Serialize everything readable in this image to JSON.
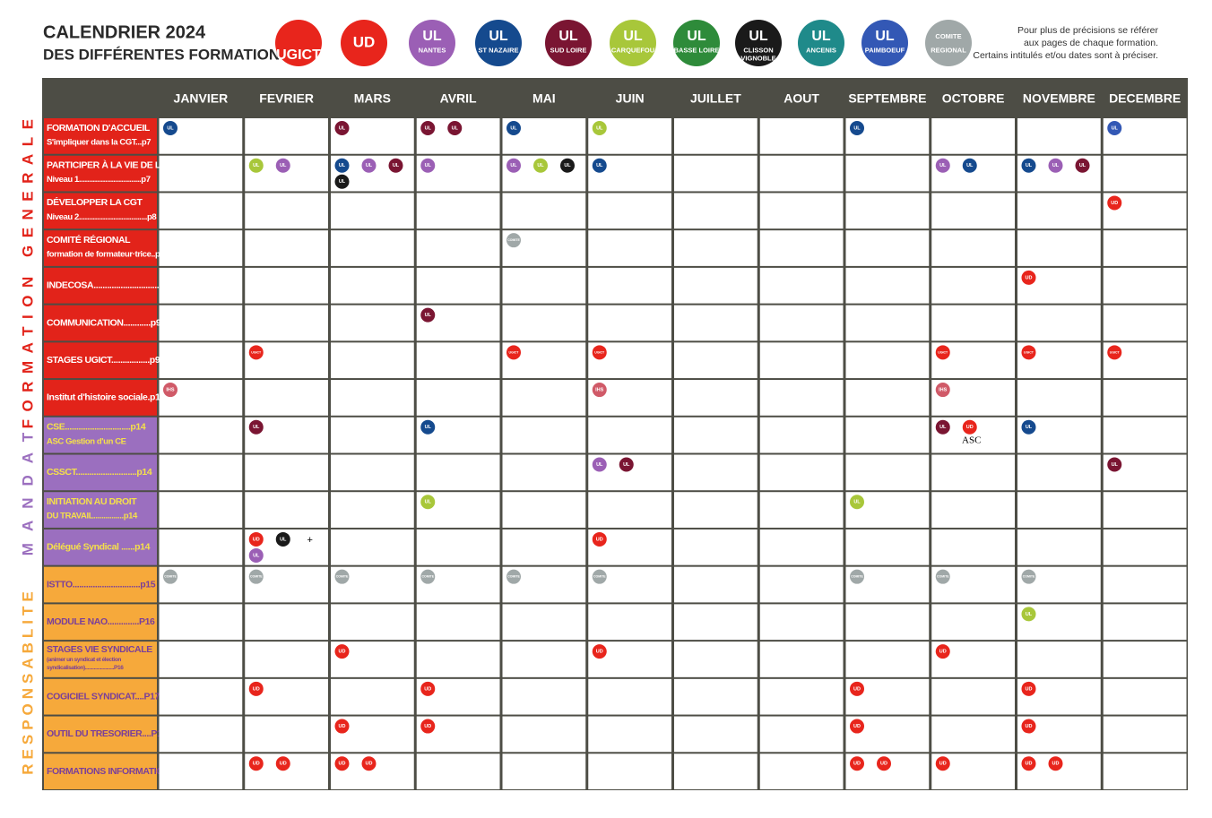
{
  "header": {
    "title": [
      "CALENDRIER 2024",
      "DES DIFFÉRENTES FORMATIONS"
    ],
    "note": [
      "Pour plus de précisions se référer",
      "aux pages de chaque formation.",
      "Certains intitulés et/ou dates sont à préciser."
    ]
  },
  "legend": [
    {
      "lines": [
        "UGICT"
      ],
      "color": "#e8251c"
    },
    {
      "lines": [
        "UD"
      ],
      "color": "#e8251c"
    },
    {
      "lines": [
        "UL",
        "NANTES"
      ],
      "color": "#9b5fb5"
    },
    {
      "lines": [
        "UL",
        "ST NAZAIRE"
      ],
      "color": "#154a8e"
    },
    {
      "lines": [
        "UL",
        "SUD LOIRE"
      ],
      "color": "#7a1532"
    },
    {
      "lines": [
        "UL",
        "CARQUEFOU"
      ],
      "color": "#a8c73a"
    },
    {
      "lines": [
        "UL",
        "BASSE LOIRE"
      ],
      "color": "#2e8b3a"
    },
    {
      "lines": [
        "UL",
        "CLISSON",
        "VIGNOBLE"
      ],
      "color": "#1a1a1a"
    },
    {
      "lines": [
        "UL",
        "ANCENIS"
      ],
      "color": "#1f8a8a"
    },
    {
      "lines": [
        "UL",
        "PAIMBOEUF"
      ],
      "color": "#3358b5"
    },
    {
      "lines": [
        "COMITE",
        "REGIONAL"
      ],
      "color": "#a0a8a8"
    }
  ],
  "table": {
    "months": [
      "JANVIER",
      "FEVRIER",
      "MARS",
      "AVRIL",
      "MAI",
      "JUIN",
      "JUILLET",
      "AOUT",
      "SEPTEMBRE",
      "OCTOBRE",
      "NOVEMBRE",
      "DECEMBRE"
    ],
    "sections": [
      {
        "label": "FORMATION GENERALE",
        "color": "#e2231a"
      },
      {
        "label": "MANDAT",
        "color": "#9b6fbf"
      },
      {
        "label": "RESPONSABLITE",
        "color": "#f6a93b"
      }
    ],
    "rows": [
      {
        "section": 0,
        "lines": [
          "FORMATION D'ACCUEIL",
          "S'impliquer dans la CGT...p7"
        ],
        "cells": [
          [
            {
              "text": "UL",
              "color": "#154a8e"
            }
          ],
          [],
          [
            {
              "text": "UL",
              "color": "#7a1532"
            }
          ],
          [
            {
              "text": "UL",
              "color": "#7a1532"
            },
            {
              "text": "UL",
              "color": "#7a1532"
            }
          ],
          [
            {
              "text": "UL",
              "color": "#154a8e"
            }
          ],
          [
            {
              "text": "UL",
              "color": "#a8c73a"
            }
          ],
          [],
          [],
          [
            {
              "text": "UL",
              "color": "#154a8e"
            }
          ],
          [],
          [],
          [
            {
              "text": "UL",
              "color": "#3358b5"
            }
          ]
        ]
      },
      {
        "section": 0,
        "lines": [
          "PARTICIPER À LA VIE DE LA CGT",
          "Niveau 1...............................p7"
        ],
        "cells": [
          [],
          [
            {
              "text": "UL",
              "color": "#a8c73a"
            },
            {
              "text": "UL",
              "color": "#9b5fb5"
            }
          ],
          [
            {
              "text": "UL",
              "color": "#154a8e"
            },
            {
              "text": "UL",
              "color": "#9b5fb5"
            },
            {
              "text": "UL",
              "color": "#7a1532"
            },
            {
              "text": "UL",
              "color": "#1a1a1a"
            }
          ],
          [
            {
              "text": "UL",
              "color": "#9b5fb5"
            }
          ],
          [
            {
              "text": "UL",
              "color": "#9b5fb5"
            },
            {
              "text": "UL",
              "color": "#a8c73a"
            },
            {
              "text": "UL",
              "color": "#1a1a1a"
            }
          ],
          [
            {
              "text": "UL",
              "color": "#154a8e"
            }
          ],
          [],
          [],
          [],
          [
            {
              "text": "UL",
              "color": "#9b5fb5"
            },
            {
              "text": "UL",
              "color": "#154a8e"
            }
          ],
          [
            {
              "text": "UL",
              "color": "#154a8e"
            },
            {
              "text": "UL",
              "color": "#9b5fb5"
            },
            {
              "text": "UL",
              "color": "#7a1532"
            }
          ],
          []
        ]
      },
      {
        "section": 0,
        "lines": [
          "DÉVELOPPER LA CGT",
          "Niveau 2..................................p8"
        ],
        "cells": [
          [],
          [],
          [],
          [],
          [],
          [],
          [],
          [],
          [],
          [],
          [],
          [
            {
              "text": "UD",
              "color": "#e8251c"
            }
          ]
        ]
      },
      {
        "section": 0,
        "lines": [
          "COMITÉ RÉGIONAL",
          "formation de formateur·trice..p8"
        ],
        "cells": [
          [],
          [],
          [],
          [],
          [
            {
              "text": "COMITE",
              "color": "#a0a8a8"
            }
          ],
          [],
          [],
          [],
          [],
          [],
          [],
          []
        ]
      },
      {
        "section": 0,
        "lines": [
          "INDECOSA..............................p8"
        ],
        "cells": [
          [],
          [],
          [],
          [],
          [],
          [],
          [],
          [],
          [],
          [],
          [
            {
              "text": "UD",
              "color": "#e8251c"
            }
          ],
          []
        ]
      },
      {
        "section": 0,
        "lines": [
          "COMMUNICATION............p9"
        ],
        "cells": [
          [],
          [],
          [],
          [
            {
              "text": "UL",
              "color": "#7a1532"
            }
          ],
          [],
          [],
          [],
          [],
          [],
          [],
          [],
          []
        ]
      },
      {
        "section": 0,
        "lines": [
          "STAGES UGICT.................p9"
        ],
        "cells": [
          [],
          [
            {
              "text": "UGICT",
              "color": "#e8251c"
            }
          ],
          [],
          [],
          [
            {
              "text": "UGICT",
              "color": "#e8251c"
            }
          ],
          [
            {
              "text": "UGICT",
              "color": "#e8251c"
            }
          ],
          [],
          [],
          [],
          [
            {
              "text": "UGICT",
              "color": "#e8251c"
            }
          ],
          [
            {
              "text": "UGICT",
              "color": "#e8251c"
            }
          ],
          [
            {
              "text": "UGICT",
              "color": "#e8251c"
            }
          ]
        ]
      },
      {
        "section": 0,
        "lines": [
          "Institut d'histoire sociale.p12"
        ],
        "cells": [
          [
            {
              "text": "IHS",
              "color": "#d05a68"
            }
          ],
          [],
          [],
          [],
          [],
          [
            {
              "text": "IHS",
              "color": "#d05a68"
            }
          ],
          [],
          [],
          [],
          [
            {
              "text": "IHS",
              "color": "#d05a68"
            }
          ],
          [],
          []
        ]
      },
      {
        "section": 1,
        "lines": [
          "CSE.............................p14",
          "ASC Gestion d'un CE"
        ],
        "cells": [
          [],
          [
            {
              "text": "UL",
              "color": "#7a1532"
            }
          ],
          [],
          [
            {
              "text": "UL",
              "color": "#154a8e"
            }
          ],
          [],
          [],
          [],
          [],
          [],
          [
            {
              "text": "UL",
              "color": "#7a1532"
            },
            {
              "text": "UD",
              "color": "#e8251c",
              "caption": "ASC"
            }
          ],
          [
            {
              "text": "UL",
              "color": "#154a8e"
            }
          ],
          []
        ]
      },
      {
        "section": 1,
        "lines": [
          "CSSCT...........................p14"
        ],
        "cells": [
          [],
          [],
          [],
          [],
          [],
          [
            {
              "text": "UL",
              "color": "#9b5fb5"
            },
            {
              "text": "UL",
              "color": "#7a1532"
            }
          ],
          [],
          [],
          [],
          [],
          [],
          [
            {
              "text": "UL",
              "color": "#7a1532"
            }
          ]
        ]
      },
      {
        "section": 1,
        "lines": [
          "INITIATION AU DROIT",
          "DU TRAVAIL...............p14"
        ],
        "cells": [
          [],
          [],
          [],
          [
            {
              "text": "UL",
              "color": "#a8c73a"
            }
          ],
          [],
          [],
          [],
          [],
          [
            {
              "text": "UL",
              "color": "#a8c73a"
            }
          ],
          [],
          [],
          []
        ]
      },
      {
        "section": 1,
        "lines": [
          "Délégué Syndical ......p14"
        ],
        "cells": [
          [],
          [
            {
              "text": "UD",
              "color": "#e8251c"
            },
            {
              "text": "UL",
              "color": "#1a1a1a"
            },
            {
              "text": "+"
            },
            {
              "text": "UL",
              "color": "#9b5fb5"
            }
          ],
          [],
          [],
          [],
          [
            {
              "text": "UD",
              "color": "#e8251c"
            }
          ],
          [],
          [],
          [],
          [],
          [],
          []
        ]
      },
      {
        "section": 2,
        "lines": [
          "ISTTO..............................p15"
        ],
        "cells": [
          [
            {
              "text": "COMITE",
              "color": "#a0a8a8"
            }
          ],
          [
            {
              "text": "COMITE",
              "color": "#a0a8a8"
            }
          ],
          [
            {
              "text": "COMITE",
              "color": "#a0a8a8"
            }
          ],
          [
            {
              "text": "COMITE",
              "color": "#a0a8a8"
            }
          ],
          [
            {
              "text": "COMITE",
              "color": "#a0a8a8"
            }
          ],
          [
            {
              "text": "COMITE",
              "color": "#a0a8a8"
            }
          ],
          [],
          [],
          [
            {
              "text": "COMITE",
              "color": "#a0a8a8"
            }
          ],
          [
            {
              "text": "COMITE",
              "color": "#a0a8a8"
            }
          ],
          [
            {
              "text": "COMITE",
              "color": "#a0a8a8"
            }
          ],
          []
        ]
      },
      {
        "section": 2,
        "lines": [
          "MODULE NAO..............P16"
        ],
        "cells": [
          [],
          [],
          [],
          [],
          [],
          [],
          [],
          [],
          [],
          [],
          [
            {
              "text": "UL",
              "color": "#a8c73a"
            }
          ],
          []
        ]
      },
      {
        "section": 2,
        "lines": [
          "STAGES VIE SYNDICALE",
          "(animer un syndicat et élection",
          "syndicalisation).......................P16"
        ],
        "cells": [
          [],
          [],
          [
            {
              "text": "UD",
              "color": "#e8251c"
            }
          ],
          [],
          [],
          [
            {
              "text": "UD",
              "color": "#e8251c"
            }
          ],
          [],
          [],
          [],
          [
            {
              "text": "UD",
              "color": "#e8251c"
            }
          ],
          [],
          []
        ]
      },
      {
        "section": 2,
        "lines": [
          "COGICIEL SYNDICAT....P17"
        ],
        "cells": [
          [],
          [
            {
              "text": "UD",
              "color": "#e8251c"
            }
          ],
          [],
          [
            {
              "text": "UD",
              "color": "#e8251c"
            }
          ],
          [],
          [],
          [],
          [],
          [
            {
              "text": "UD",
              "color": "#e8251c"
            }
          ],
          [],
          [
            {
              "text": "UD",
              "color": "#e8251c"
            }
          ],
          []
        ]
      },
      {
        "section": 2,
        "lines": [
          "OUTIL DU TRESORIER....P17"
        ],
        "cells": [
          [],
          [],
          [
            {
              "text": "UD",
              "color": "#e8251c"
            }
          ],
          [
            {
              "text": "UD",
              "color": "#e8251c"
            }
          ],
          [],
          [],
          [],
          [],
          [
            {
              "text": "UD",
              "color": "#e8251c"
            }
          ],
          [],
          [
            {
              "text": "UD",
              "color": "#e8251c"
            }
          ],
          []
        ]
      },
      {
        "section": 2,
        "lines": [
          "FORMATIONS INFORMATIQUES.P18"
        ],
        "cells": [
          [],
          [
            {
              "text": "UD",
              "color": "#e8251c"
            },
            {
              "text": "UD",
              "color": "#e8251c"
            }
          ],
          [
            {
              "text": "UD",
              "color": "#e8251c"
            },
            {
              "text": "UD",
              "color": "#e8251c"
            }
          ],
          [],
          [],
          [],
          [],
          [],
          [
            {
              "text": "UD",
              "color": "#e8251c"
            },
            {
              "text": "UD",
              "color": "#e8251c"
            }
          ],
          [
            {
              "text": "UD",
              "color": "#e8251c"
            }
          ],
          [
            {
              "text": "UD",
              "color": "#e8251c"
            },
            {
              "text": "UD",
              "color": "#e8251c"
            }
          ],
          []
        ]
      }
    ]
  }
}
